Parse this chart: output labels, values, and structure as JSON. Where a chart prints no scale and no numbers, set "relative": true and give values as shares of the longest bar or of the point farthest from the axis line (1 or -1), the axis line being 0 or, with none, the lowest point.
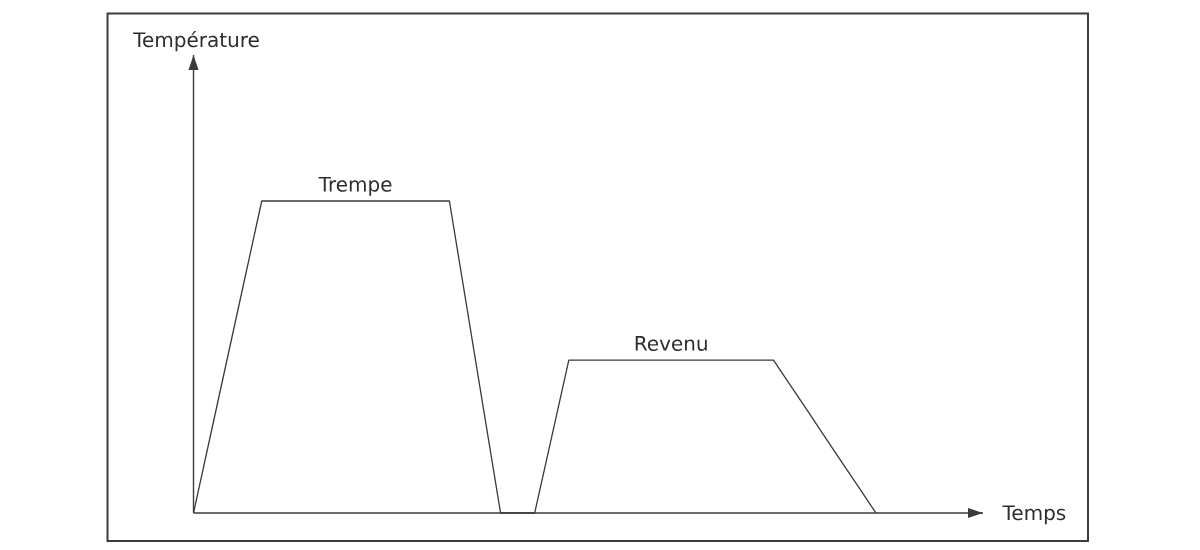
{
  "chart_data": {
    "type": "line",
    "relative": true,
    "categories": [
      null,
      null,
      null,
      null,
      null,
      null,
      null,
      null,
      null,
      null,
      null,
      null,
      null,
      null,
      null,
      null,
      null,
      null,
      null,
      null,
      null,
      null,
      null,
      null,
      null,
      null,
      null,
      null,
      null,
      null,
      null,
      null,
      null,
      null,
      null,
      null,
      null,
      null,
      null,
      null,
      null
    ],
    "values": [
      0,
      0.25,
      0.5,
      0.75,
      1,
      1,
      1,
      1,
      1,
      1,
      1,
      1,
      1,
      1,
      1,
      1,
      0.667,
      0.333,
      0,
      0,
      0,
      0.245,
      0.49,
      0.49,
      0.49,
      0.49,
      0.49,
      0.49,
      0.49,
      0.49,
      0.49,
      0.49,
      0.49,
      0.49,
      0.49,
      0.408,
      0.327,
      0.245,
      0.163,
      0.082,
      0
    ],
    "color": "#3a3a3a",
    "annotations": [
      "Température",
      {
        "text": "Trempe",
        "y": 1
      },
      {
        "text": "Revenu",
        "y": 0.49
      },
      "Temps"
    ]
  }
}
